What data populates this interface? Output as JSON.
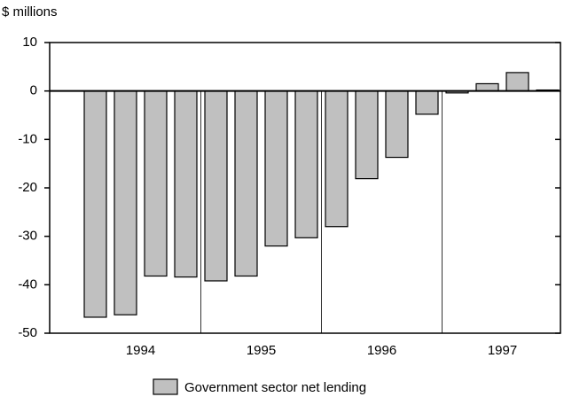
{
  "chart_data": {
    "type": "bar",
    "y_label": "$ millions",
    "categories": [
      null,
      null,
      null,
      null,
      null,
      null,
      null,
      null,
      null,
      null,
      null,
      null,
      null,
      null,
      null,
      null
    ],
    "groups": [
      "1994",
      "1995",
      "1996",
      "1997"
    ],
    "series": [
      {
        "name": "Government sector net lending",
        "color": "#c0c0c0",
        "values": [
          -46.7,
          -46.2,
          -38.2,
          -38.4,
          -39.2,
          -38.2,
          -32.0,
          -30.3,
          -28.0,
          -18.1,
          -13.7,
          -4.8,
          -0.4,
          1.5,
          3.8,
          0.2
        ]
      }
    ],
    "ylim": [
      -50,
      10
    ],
    "yticks": [
      -50,
      -40,
      -30,
      -20,
      -10,
      0,
      10
    ]
  }
}
